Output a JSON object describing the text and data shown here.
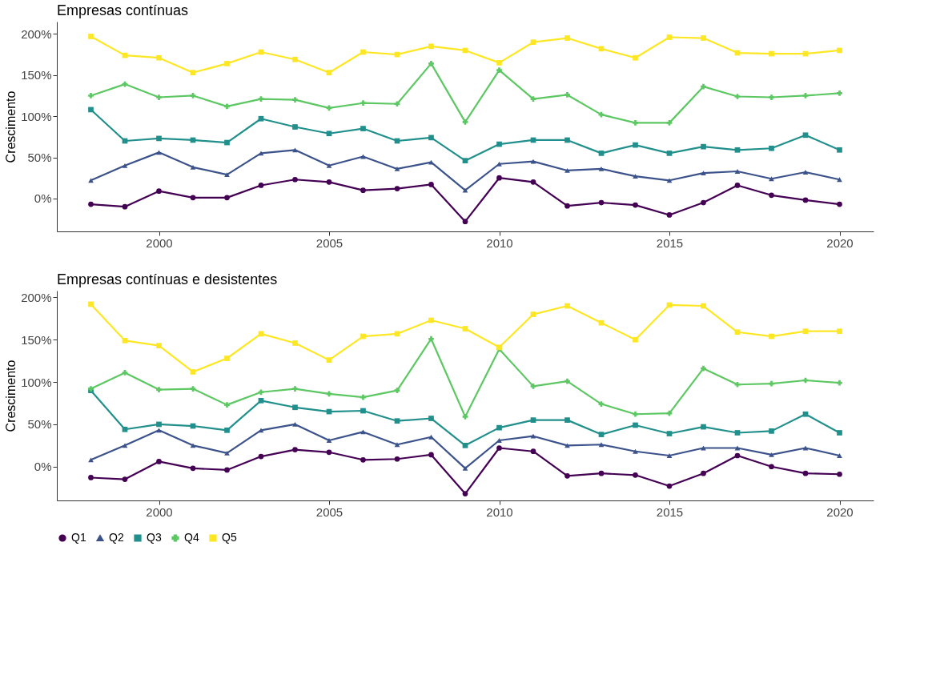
{
  "chart_data": [
    {
      "type": "line",
      "title": "Empresas contínuas",
      "ylabel": "Crescimento",
      "x": [
        1998,
        1999,
        2000,
        2001,
        2002,
        2003,
        2004,
        2005,
        2006,
        2007,
        2008,
        2009,
        2010,
        2011,
        2012,
        2013,
        2014,
        2015,
        2016,
        2017,
        2018,
        2019,
        2020
      ],
      "xlim": [
        1997,
        2021
      ],
      "xticks": [
        2000,
        2005,
        2010,
        2015,
        2020
      ],
      "ylim": [
        -40,
        215
      ],
      "yticks": [
        {
          "value": 0,
          "label": "0%"
        },
        {
          "value": 50,
          "label": "50%"
        },
        {
          "value": 100,
          "label": "100%"
        },
        {
          "value": 150,
          "label": "150%"
        },
        {
          "value": 200,
          "label": "200%"
        }
      ],
      "grid": false,
      "legend": "bottom left",
      "line_style": "solid",
      "series": [
        {
          "name": "Q1",
          "color": "#440154",
          "marker": "circle",
          "values": [
            -7,
            -10,
            9,
            1,
            1,
            16,
            23,
            20,
            10,
            12,
            17,
            -28,
            25,
            20,
            -9,
            -5,
            -8,
            -20,
            -5,
            16,
            4,
            -2,
            -7
          ]
        },
        {
          "name": "Q2",
          "color": "#3b528b",
          "marker": "triangle",
          "values": [
            22,
            40,
            56,
            38,
            29,
            55,
            59,
            40,
            51,
            36,
            44,
            10,
            42,
            45,
            34,
            36,
            27,
            22,
            31,
            33,
            24,
            32,
            23
          ]
        },
        {
          "name": "Q3",
          "color": "#21908c",
          "marker": "square",
          "values": [
            108,
            70,
            73,
            71,
            68,
            97,
            87,
            79,
            85,
            70,
            74,
            46,
            66,
            71,
            71,
            55,
            65,
            55,
            63,
            59,
            61,
            77,
            59
          ]
        },
        {
          "name": "Q4",
          "color": "#5dc863",
          "marker": "cross",
          "values": [
            125,
            139,
            123,
            125,
            112,
            121,
            120,
            110,
            116,
            115,
            164,
            93,
            156,
            121,
            126,
            102,
            92,
            92,
            136,
            124,
            123,
            125,
            128
          ]
        },
        {
          "name": "Q5",
          "color": "#fde725",
          "marker": "square",
          "values": [
            197,
            174,
            171,
            153,
            164,
            178,
            169,
            153,
            178,
            175,
            185,
            180,
            165,
            190,
            195,
            182,
            171,
            196,
            195,
            177,
            176,
            176,
            180
          ]
        }
      ]
    },
    {
      "type": "line",
      "title": "Empresas contínuas e desistentes",
      "ylabel": "Crescimento",
      "x": [
        1998,
        1999,
        2000,
        2001,
        2002,
        2003,
        2004,
        2005,
        2006,
        2007,
        2008,
        2009,
        2010,
        2011,
        2012,
        2013,
        2014,
        2015,
        2016,
        2017,
        2018,
        2019,
        2020
      ],
      "xlim": [
        1997,
        2021
      ],
      "xticks": [
        2000,
        2005,
        2010,
        2015,
        2020
      ],
      "ylim": [
        -40,
        208
      ],
      "yticks": [
        {
          "value": 0,
          "label": "0%"
        },
        {
          "value": 50,
          "label": "50%"
        },
        {
          "value": 100,
          "label": "100%"
        },
        {
          "value": 150,
          "label": "150%"
        },
        {
          "value": 200,
          "label": "200%"
        }
      ],
      "grid": false,
      "legend": "bottom left",
      "line_style": "solid",
      "series": [
        {
          "name": "Q1",
          "color": "#440154",
          "marker": "circle",
          "values": [
            -13,
            -15,
            6,
            -2,
            -4,
            12,
            20,
            17,
            8,
            9,
            14,
            -32,
            22,
            18,
            -11,
            -8,
            -10,
            -23,
            -8,
            13,
            0,
            -8,
            -9
          ]
        },
        {
          "name": "Q2",
          "color": "#3b528b",
          "marker": "triangle",
          "values": [
            8,
            25,
            43,
            25,
            16,
            43,
            50,
            31,
            41,
            26,
            35,
            -2,
            31,
            36,
            25,
            26,
            18,
            13,
            22,
            22,
            14,
            22,
            13
          ]
        },
        {
          "name": "Q3",
          "color": "#21908c",
          "marker": "square",
          "values": [
            90,
            44,
            50,
            48,
            43,
            78,
            70,
            65,
            66,
            54,
            57,
            25,
            46,
            55,
            55,
            38,
            49,
            39,
            47,
            40,
            42,
            62,
            40
          ]
        },
        {
          "name": "Q4",
          "color": "#5dc863",
          "marker": "cross",
          "values": [
            92,
            111,
            91,
            92,
            73,
            88,
            92,
            86,
            82,
            90,
            151,
            59,
            139,
            95,
            101,
            74,
            62,
            63,
            116,
            97,
            98,
            102,
            99
          ]
        },
        {
          "name": "Q5",
          "color": "#fde725",
          "marker": "square",
          "values": [
            192,
            149,
            143,
            112,
            128,
            157,
            146,
            126,
            154,
            157,
            173,
            163,
            141,
            180,
            190,
            170,
            150,
            191,
            190,
            159,
            154,
            160,
            160
          ]
        }
      ]
    }
  ]
}
